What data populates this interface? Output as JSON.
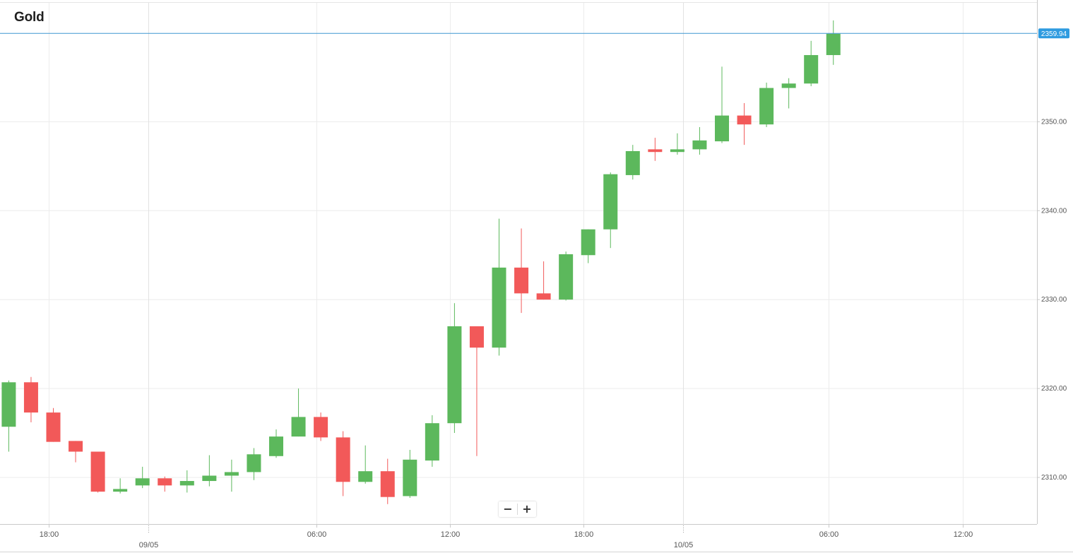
{
  "title": "Gold",
  "zoom": {
    "minus_label": "−",
    "plus_label": "+"
  },
  "colors": {
    "up": "#5cb85c",
    "down": "#f25959",
    "price_line": "#3e97d1",
    "price_tag": "#2e9be0",
    "grid": "#ececec",
    "axis": "#c9c9c9",
    "label": "#555555"
  },
  "chart_data": {
    "type": "candlestick",
    "title": "Gold",
    "interval_hours": 2,
    "ylim": [
      2305,
      2362
    ],
    "y_ticks": [
      "2310.00",
      "2320.00",
      "2330.00",
      "2340.00",
      "2350.00"
    ],
    "x_time_labels": [
      "18:00",
      "06:00",
      "12:00",
      "18:00",
      "06:00",
      "12:00"
    ],
    "x_date_labels": [
      "09/05",
      "10/05"
    ],
    "last_price_label": "2359.94",
    "last_price": 2359.94,
    "grid": true,
    "candles": [
      {
        "t": "08/05 14:00",
        "o": 2315.7,
        "h": 2320.9,
        "l": 2312.9,
        "c": 2320.7
      },
      {
        "t": "08/05 16:00",
        "o": 2320.7,
        "h": 2321.3,
        "l": 2316.2,
        "c": 2317.3
      },
      {
        "t": "08/05 18:00",
        "o": 2317.3,
        "h": 2317.8,
        "l": 2314.0,
        "c": 2314.0
      },
      {
        "t": "08/05 20:00",
        "o": 2314.1,
        "h": 2314.1,
        "l": 2311.7,
        "c": 2312.9
      },
      {
        "t": "08/05 22:00",
        "o": 2312.9,
        "h": 2312.9,
        "l": 2308.3,
        "c": 2308.4
      },
      {
        "t": "09/05 00:00",
        "o": 2308.4,
        "h": 2309.9,
        "l": 2308.2,
        "c": 2308.7
      },
      {
        "t": "09/05 02:00",
        "o": 2309.1,
        "h": 2311.2,
        "l": 2308.8,
        "c": 2309.9
      },
      {
        "t": "09/05 04:00",
        "o": 2309.9,
        "h": 2310.1,
        "l": 2308.4,
        "c": 2309.1
      },
      {
        "t": "09/05 06:00",
        "o": 2309.1,
        "h": 2310.8,
        "l": 2308.3,
        "c": 2309.6
      },
      {
        "t": "09/05 08:00",
        "o": 2309.6,
        "h": 2312.5,
        "l": 2309.0,
        "c": 2310.2
      },
      {
        "t": "09/05 10:00",
        "o": 2310.2,
        "h": 2312.0,
        "l": 2308.4,
        "c": 2310.6
      },
      {
        "t": "09/05 12:00",
        "o": 2310.6,
        "h": 2313.3,
        "l": 2309.7,
        "c": 2312.6
      },
      {
        "t": "09/05 14:00",
        "o": 2312.4,
        "h": 2315.4,
        "l": 2312.2,
        "c": 2314.6
      },
      {
        "t": "09/05 16:00",
        "o": 2314.6,
        "h": 2320.0,
        "l": 2314.6,
        "c": 2316.8
      },
      {
        "t": "09/05 18:00",
        "o": 2316.8,
        "h": 2317.3,
        "l": 2314.1,
        "c": 2314.5
      },
      {
        "t": "09/05 20:00",
        "o": 2314.5,
        "h": 2315.2,
        "l": 2307.9,
        "c": 2309.5
      },
      {
        "t": "09/05 22:00",
        "o": 2309.5,
        "h": 2313.6,
        "l": 2309.3,
        "c": 2310.7
      },
      {
        "t": "10/05 00:00",
        "o": 2310.7,
        "h": 2312.1,
        "l": 2307.0,
        "c": 2307.8
      },
      {
        "t": "10/05 02:00",
        "o": 2307.9,
        "h": 2313.1,
        "l": 2307.7,
        "c": 2312.0
      },
      {
        "t": "10/05 04:00",
        "o": 2311.9,
        "h": 2317.0,
        "l": 2311.2,
        "c": 2316.1
      },
      {
        "t": "10/05 06:00",
        "o": 2316.1,
        "h": 2329.6,
        "l": 2315.0,
        "c": 2327.0
      },
      {
        "t": "10/05 08:00",
        "o": 2327.0,
        "h": 2327.0,
        "l": 2312.4,
        "c": 2324.6
      },
      {
        "t": "10/05 10:00",
        "o": 2324.6,
        "h": 2339.1,
        "l": 2323.7,
        "c": 2333.6
      },
      {
        "t": "10/05 12:00",
        "o": 2333.6,
        "h": 2338.0,
        "l": 2328.5,
        "c": 2330.7
      },
      {
        "t": "10/05 14:00",
        "o": 2330.7,
        "h": 2334.3,
        "l": 2330.0,
        "c": 2330.0
      },
      {
        "t": "10/05 16:00",
        "o": 2330.0,
        "h": 2335.4,
        "l": 2329.9,
        "c": 2335.1
      },
      {
        "t": "10/05 18:00",
        "o": 2335.0,
        "h": 2337.9,
        "l": 2334.1,
        "c": 2337.9
      },
      {
        "t": "10/05 20:00",
        "o": 2337.9,
        "h": 2344.3,
        "l": 2335.8,
        "c": 2344.1
      },
      {
        "t": "10/05 22:00",
        "o": 2344.0,
        "h": 2347.4,
        "l": 2343.5,
        "c": 2346.7
      },
      {
        "t": "11/05 00:00",
        "o": 2346.9,
        "h": 2348.2,
        "l": 2345.6,
        "c": 2346.6
      },
      {
        "t": "11/05 02:00",
        "o": 2346.6,
        "h": 2348.7,
        "l": 2346.3,
        "c": 2346.9
      },
      {
        "t": "11/05 04:00",
        "o": 2346.9,
        "h": 2349.4,
        "l": 2346.3,
        "c": 2347.9
      },
      {
        "t": "11/05 06:00",
        "o": 2347.8,
        "h": 2356.2,
        "l": 2347.6,
        "c": 2350.7
      },
      {
        "t": "11/05 08:00",
        "o": 2350.7,
        "h": 2352.1,
        "l": 2347.4,
        "c": 2349.7
      },
      {
        "t": "11/05 10:00",
        "o": 2349.7,
        "h": 2354.4,
        "l": 2349.4,
        "c": 2353.8
      },
      {
        "t": "11/05 12:00",
        "o": 2353.8,
        "h": 2354.9,
        "l": 2351.5,
        "c": 2354.3
      },
      {
        "t": "11/05 14:00",
        "o": 2354.3,
        "h": 2359.1,
        "l": 2354.0,
        "c": 2357.5
      },
      {
        "t": "11/05 16:00",
        "o": 2357.5,
        "h": 2361.4,
        "l": 2356.4,
        "c": 2359.9
      }
    ]
  }
}
